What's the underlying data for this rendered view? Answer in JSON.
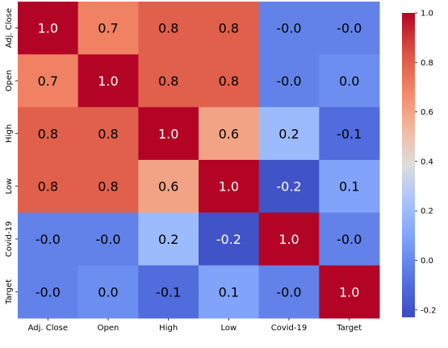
{
  "chart_data": {
    "type": "heatmap",
    "title": "",
    "xlabel": "",
    "ylabel": "",
    "x_categories": [
      "Adj. Close",
      "Open",
      "High",
      "Low",
      "Covid-19",
      "Target"
    ],
    "y_categories": [
      "Adj. Close",
      "Open",
      "High",
      "Low",
      "Covid-19",
      "Target"
    ],
    "values": [
      [
        1.0,
        0.7,
        0.8,
        0.8,
        -0.02,
        -0.02
      ],
      [
        0.7,
        1.0,
        0.8,
        0.8,
        -0.02,
        0.02
      ],
      [
        0.8,
        0.8,
        1.0,
        0.6,
        0.2,
        -0.1
      ],
      [
        0.8,
        0.8,
        0.6,
        1.0,
        -0.2,
        0.1
      ],
      [
        -0.02,
        -0.02,
        0.2,
        -0.2,
        1.0,
        -0.02
      ],
      [
        -0.02,
        0.02,
        -0.1,
        0.1,
        -0.02,
        1.0
      ]
    ],
    "annotations": [
      [
        "1.0",
        "0.7",
        "0.8",
        "0.8",
        "-0.0",
        "-0.0"
      ],
      [
        "0.7",
        "1.0",
        "0.8",
        "0.8",
        "-0.0",
        "0.0"
      ],
      [
        "0.8",
        "0.8",
        "1.0",
        "0.6",
        "0.2",
        "-0.1"
      ],
      [
        "0.8",
        "0.8",
        "0.6",
        "1.0",
        "-0.2",
        "0.1"
      ],
      [
        "-0.0",
        "-0.0",
        "0.2",
        "-0.2",
        "1.0",
        "-0.0"
      ],
      [
        "-0.0",
        "0.0",
        "-0.1",
        "0.1",
        "-0.0",
        "1.0"
      ]
    ],
    "colormap": "coolwarm",
    "vmin": -0.23,
    "vmax": 1.0,
    "colorbar_ticks": [
      "1.0",
      "0.8",
      "0.6",
      "0.4",
      "0.2",
      "0.0",
      "-0.2"
    ],
    "colorbar_values": [
      1.0,
      0.8,
      0.6,
      0.4,
      0.2,
      0.0,
      -0.2
    ]
  }
}
